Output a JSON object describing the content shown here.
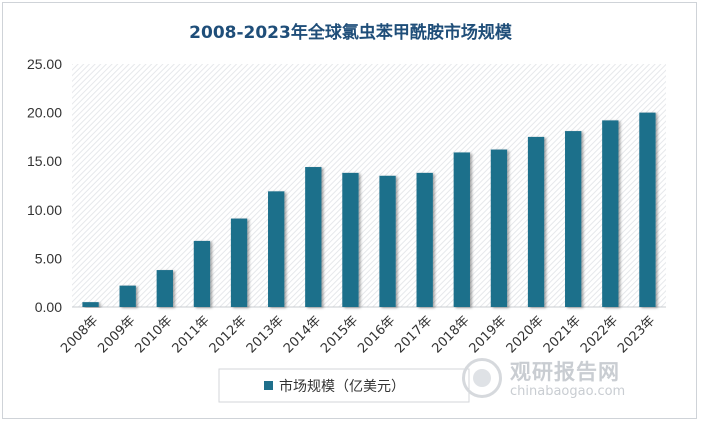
{
  "chart_data": {
    "type": "bar",
    "title": "2008-2023年全球氯虫苯甲酰胺市场规模",
    "categories": [
      "2008年",
      "2009年",
      "2010年",
      "2011年",
      "2012年",
      "2013年",
      "2014年",
      "2015年",
      "2016年",
      "2017年",
      "2018年",
      "2019年",
      "2020年",
      "2021年",
      "2022年",
      "2023年"
    ],
    "series": [
      {
        "name": "市场规模（亿美元）",
        "values": [
          0.5,
          2.2,
          3.8,
          6.8,
          9.1,
          11.9,
          14.4,
          13.8,
          13.5,
          13.8,
          15.9,
          16.2,
          17.5,
          18.1,
          19.2,
          20.0
        ]
      }
    ],
    "ylim": [
      0,
      25
    ],
    "yticks": [
      "0.00",
      "5.00",
      "10.00",
      "15.00",
      "20.00",
      "25.00"
    ],
    "ytick_values": [
      0,
      5,
      10,
      15,
      20,
      25
    ],
    "xlabel": "",
    "ylabel": "",
    "legend": "bottom-center",
    "bar_color": "#1f6f8b"
  },
  "watermark": {
    "cn": "观研报告网",
    "en": "chinabaogao.com"
  }
}
